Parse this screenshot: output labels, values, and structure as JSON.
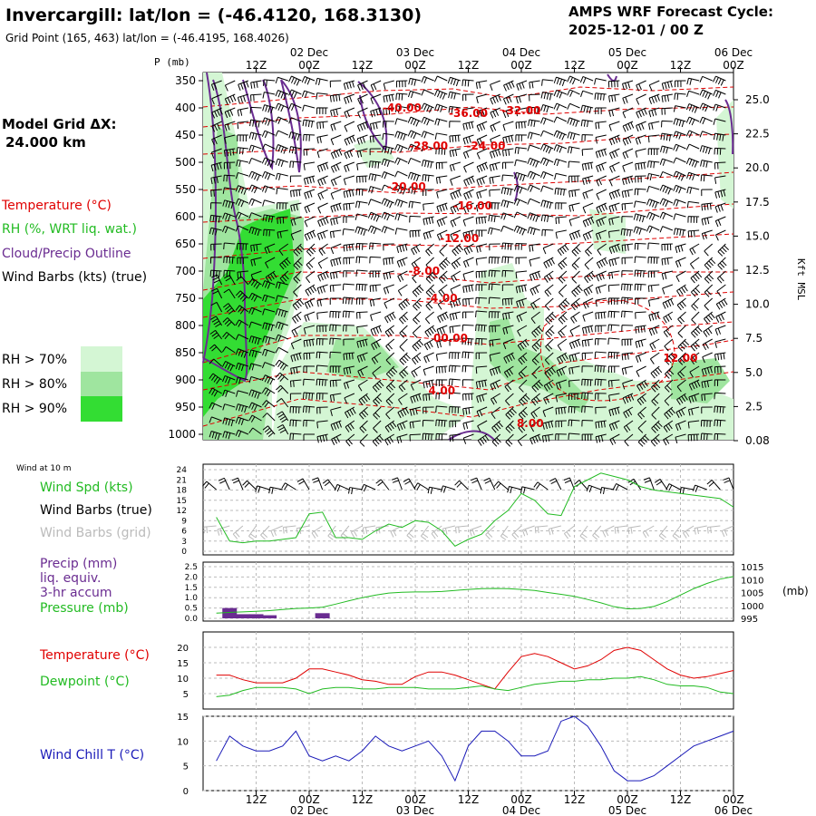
{
  "header": {
    "title": "Invercargill:  lat/lon = (-46.4120, 168.3130)",
    "grid_point": "Grid Point (165, 463) lat/lon = (-46.4195, 168.4026)",
    "cycle_line1": "AMPS WRF Forecast Cycle:",
    "cycle_line2": "2025-12-01 / 00  Z"
  },
  "time_axis": {
    "hour_labels": [
      "12Z",
      "00Z",
      "12Z",
      "00Z",
      "12Z",
      "00Z",
      "12Z",
      "00Z",
      "12Z",
      "00Z"
    ],
    "day_labels": [
      "02 Dec",
      "03 Dec",
      "04 Dec",
      "05 Dec",
      "06 Dec"
    ]
  },
  "left_legend": {
    "model_grid_label": "Model Grid ΔX:",
    "model_grid_value": "24.000 km",
    "temperature": "Temperature (°C)",
    "rh": "RH (%, WRT liq. wat.)",
    "cloud": "Cloud/Precip Outline",
    "wind": "Wind Barbs (kts) (true)",
    "rh70": "RH > 70%",
    "rh80": "RH > 80%",
    "rh90": "RH > 90%"
  },
  "colors": {
    "temperature": "#e00000",
    "rh": "#22bb22",
    "cloud": "#6a2c91",
    "rh70": "#d4f6d4",
    "rh80": "#9fe59f",
    "rh90": "#33dd33",
    "windchill": "#1a1ab8",
    "grid_barbs": "#bbbbbb"
  },
  "chart_data": [
    {
      "type": "contour",
      "name": "time-height cross section",
      "ylabel_left": "P (mb)",
      "ylabel_right": "Kft MSL",
      "pressure_ticks": [
        "350",
        "400",
        "450",
        "500",
        "550",
        "600",
        "650",
        "700",
        "750",
        "800",
        "850",
        "900",
        "950",
        "1000"
      ],
      "height_ticks": [
        "25.0",
        "22.5",
        "20.0",
        "17.5",
        "15.0",
        "12.5",
        "10.0",
        "7.5",
        "5.0",
        "2.5",
        "0.08"
      ],
      "temperature_contour_labels": [
        {
          "label": "-40.00",
          "p": 400,
          "hour": 45
        },
        {
          "label": "-36.00",
          "p": 410,
          "hour": 60
        },
        {
          "label": "-32.00",
          "p": 405,
          "hour": 72
        },
        {
          "label": "-28.00",
          "p": 470,
          "hour": 51
        },
        {
          "label": "-24.00",
          "p": 470,
          "hour": 64
        },
        {
          "label": "-20.00",
          "p": 545,
          "hour": 46
        },
        {
          "label": "-16.00",
          "p": 580,
          "hour": 61
        },
        {
          "label": "-12.00",
          "p": 640,
          "hour": 58
        },
        {
          "label": "-8.00",
          "p": 700,
          "hour": 50
        },
        {
          "label": "-4.00",
          "p": 750,
          "hour": 54
        },
        {
          "label": "00.00",
          "p": 823,
          "hour": 56
        },
        {
          "label": "12.00",
          "p": 860,
          "hour": 108
        },
        {
          "label": "4.00",
          "p": 920,
          "hour": 54
        },
        {
          "label": "8.00",
          "p": 980,
          "hour": 74
        }
      ]
    },
    {
      "type": "line",
      "name": "10 m wind",
      "panel_label": "Wind at 10 m",
      "legend": [
        "Wind Spd (kts)",
        "Wind Barbs (true)",
        "Wind Barbs (grid)"
      ],
      "yticks": [
        "24",
        "21",
        "18",
        "15",
        "12",
        "9",
        "6",
        "3",
        "0"
      ],
      "ylim": [
        0,
        24
      ],
      "x_hours": [
        3,
        6,
        9,
        12,
        15,
        18,
        21,
        24,
        27,
        30,
        33,
        36,
        39,
        42,
        45,
        48,
        51,
        54,
        57,
        60,
        63,
        66,
        69,
        72,
        75,
        78,
        81,
        84,
        87,
        90,
        93,
        96,
        99,
        102,
        105,
        108,
        111,
        114,
        117,
        120
      ],
      "series": [
        {
          "name": "Wind Spd (kts)",
          "values": [
            10,
            3,
            2.5,
            3,
            3,
            3.5,
            4,
            11,
            11.5,
            4,
            4,
            3.5,
            6,
            8,
            7,
            9,
            8.5,
            6,
            1.5,
            3.5,
            5,
            9,
            12,
            17,
            15,
            11,
            10.5,
            19,
            21,
            23,
            22,
            21,
            19,
            18,
            17.5,
            17,
            16.5,
            16,
            15.5,
            13
          ]
        }
      ]
    },
    {
      "type": "bar+line",
      "name": "precip and pressure",
      "legend": [
        "Precip (mm)",
        "liq. equiv.",
        "3-hr accum",
        "Pressure (mb)"
      ],
      "yticks_left": [
        "2.5",
        "2.0",
        "1.5",
        "1.0",
        "0.5",
        "0.0"
      ],
      "yticks_right": [
        "1015",
        "1010",
        "1005",
        "1000",
        "995"
      ],
      "ylabel_right": "(mb)",
      "precip_bars": [
        {
          "hour": 6,
          "mm": 0.5
        },
        {
          "hour": 9,
          "mm": 0.2
        },
        {
          "hour": 12,
          "mm": 0.2
        },
        {
          "hour": 15,
          "mm": 0.15
        },
        {
          "hour": 27,
          "mm": 0.25
        }
      ],
      "pressure_hours": [
        3,
        6,
        9,
        12,
        15,
        18,
        21,
        24,
        27,
        30,
        33,
        36,
        39,
        42,
        45,
        48,
        51,
        54,
        57,
        60,
        63,
        66,
        69,
        72,
        75,
        78,
        81,
        84,
        87,
        90,
        93,
        96,
        99,
        102,
        105,
        108,
        111,
        114,
        117,
        120
      ],
      "pressure_mb": [
        997,
        997.3,
        997.5,
        997.7,
        998,
        998.4,
        998.8,
        999,
        999.3,
        1000.5,
        1001.8,
        1003,
        1004,
        1004.8,
        1005.1,
        1005.2,
        1005.2,
        1005.4,
        1005.8,
        1006.2,
        1006.5,
        1006.6,
        1006.5,
        1006.2,
        1005.8,
        1005,
        1004.3,
        1003.5,
        1002.3,
        1001,
        999.5,
        998.7,
        998.8,
        999.6,
        1001.5,
        1004,
        1006.5,
        1008.5,
        1010.2,
        1011.2
      ]
    },
    {
      "type": "line",
      "name": "temperature and dewpoint",
      "legend": [
        "Temperature (°C)",
        "Dewpoint (°C)"
      ],
      "yticks": [
        "20",
        "15",
        "10",
        "5"
      ],
      "ylim": [
        0,
        25
      ],
      "x_hours": [
        3,
        6,
        9,
        12,
        15,
        18,
        21,
        24,
        27,
        30,
        33,
        36,
        39,
        42,
        45,
        48,
        51,
        54,
        57,
        60,
        63,
        66,
        69,
        72,
        75,
        78,
        81,
        84,
        87,
        90,
        93,
        96,
        99,
        102,
        105,
        108,
        111,
        114,
        117,
        120
      ],
      "series": [
        {
          "name": "Temperature (°C)",
          "values": [
            11,
            11,
            9.5,
            8.5,
            8.5,
            8.5,
            10,
            13,
            13,
            12,
            11,
            9.5,
            9,
            8,
            8,
            10.5,
            12,
            12,
            11,
            9.5,
            8,
            6.5,
            12,
            17,
            18,
            17,
            15,
            13,
            14,
            16,
            19,
            20,
            19,
            16,
            13,
            11,
            10,
            10.5,
            11.5,
            12.5
          ]
        },
        {
          "name": "Dewpoint (°C)",
          "values": [
            4,
            4.5,
            6,
            7,
            7,
            7,
            6.5,
            5,
            6.5,
            7,
            7,
            6.5,
            6.5,
            7,
            7,
            7,
            6.5,
            6.5,
            6.5,
            7,
            7.5,
            6.5,
            6,
            7,
            8,
            8.5,
            9,
            9,
            9.5,
            9.5,
            10,
            10,
            10.5,
            9.5,
            8,
            7.5,
            7.5,
            7,
            5.5,
            5
          ]
        }
      ]
    },
    {
      "type": "line",
      "name": "wind chill",
      "legend": [
        "Wind Chill T (°C)"
      ],
      "yticks": [
        "15",
        "10",
        "5",
        "0"
      ],
      "ylim": [
        0,
        15
      ],
      "x_hours": [
        3,
        6,
        9,
        12,
        15,
        18,
        21,
        24,
        27,
        30,
        33,
        36,
        39,
        42,
        45,
        48,
        51,
        54,
        57,
        60,
        63,
        66,
        69,
        72,
        75,
        78,
        81,
        84,
        87,
        90,
        93,
        96,
        99,
        102,
        105,
        108,
        111,
        114,
        117,
        120
      ],
      "series": [
        {
          "name": "Wind Chill T (°C)",
          "values": [
            6,
            11,
            9,
            8,
            8,
            9,
            12,
            7,
            6,
            7,
            6,
            8,
            11,
            9,
            8,
            9,
            10,
            7,
            2,
            9,
            12,
            12,
            10,
            7,
            7,
            8,
            14,
            15,
            13,
            9,
            4,
            2,
            2,
            3,
            5,
            7,
            9,
            10,
            11,
            12
          ]
        }
      ]
    }
  ],
  "bottom_panels": {
    "wind_title": "Wind at 10 m",
    "wind_spd": "Wind Spd (kts)",
    "wind_barbs_true": "Wind Barbs (true)",
    "wind_barbs_grid": "Wind Barbs (grid)",
    "precip_title": "Precip (mm)",
    "precip_sub1": "liq. equiv.",
    "precip_sub2": "3-hr accum",
    "pressure": "Pressure (mb)",
    "pressure_unit": "(mb)",
    "temperature": "Temperature (°C)",
    "dewpoint": "Dewpoint (°C)",
    "windchill": "Wind Chill T (°C)"
  }
}
